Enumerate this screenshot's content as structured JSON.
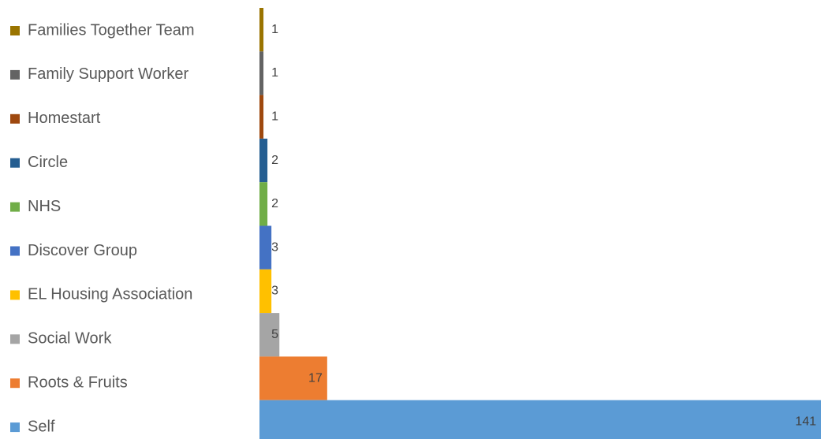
{
  "chart_data": {
    "type": "bar",
    "orientation": "horizontal",
    "categories": [
      "Families Together Team",
      "Family Support Worker",
      "Homestart",
      "Circle",
      "NHS",
      "Discover Group",
      "EL Housing Association",
      "Social Work",
      "Roots & Fruits",
      "Self"
    ],
    "values": [
      1,
      1,
      1,
      2,
      2,
      3,
      3,
      5,
      17,
      141
    ],
    "colors": [
      "#9a7400",
      "#636363",
      "#9e480e",
      "#255e91",
      "#70ad47",
      "#4472c4",
      "#ffc000",
      "#a5a5a5",
      "#ed7d31",
      "#5b9bd5"
    ]
  }
}
